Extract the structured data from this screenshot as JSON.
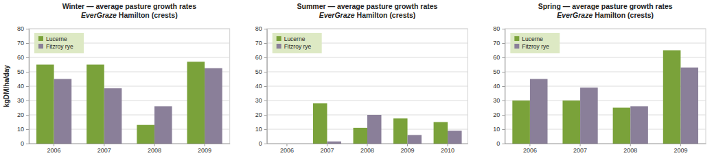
{
  "chart_data": [
    {
      "type": "bar",
      "title": [
        "Winter — average pasture growth rates",
        "EverGraze Hamilton (crests)"
      ],
      "y_label": "kgDM/ha/day",
      "categories": [
        "2006",
        "2007",
        "2008",
        "2009"
      ],
      "series": [
        {
          "name": "Lucerne",
          "color": "#7aa23a",
          "values": [
            55,
            55,
            13,
            57
          ]
        },
        {
          "name": "Fitzroy rye",
          "color": "#8a7f99",
          "values": [
            45,
            38.5,
            26,
            52.5
          ]
        }
      ],
      "ylim": [
        0,
        80
      ],
      "yticks": [
        0,
        10,
        20,
        30,
        40,
        50,
        60,
        70,
        80
      ],
      "grid": true,
      "legend": "upper left"
    },
    {
      "type": "bar",
      "title": [
        "Summer — average pasture growth rates",
        "EverGraze Hamilton (crests)"
      ],
      "categories": [
        "2006",
        "2007",
        "2008",
        "2009",
        "2010"
      ],
      "series": [
        {
          "name": "Lucerne",
          "color": "#7aa23a",
          "values": [
            null,
            28,
            11,
            17.5,
            15
          ]
        },
        {
          "name": "Fitzroy rye",
          "color": "#8a7f99",
          "values": [
            null,
            1.5,
            20,
            6,
            9
          ]
        }
      ],
      "ylim": [
        0,
        80
      ],
      "yticks": [
        0,
        10,
        20,
        30,
        40,
        50,
        60,
        70,
        80
      ],
      "grid": true,
      "legend": "upper left"
    },
    {
      "type": "bar",
      "title": [
        "Spring — average pasture growth rates",
        "EverGraze Hamilton (crests)"
      ],
      "categories": [
        "2006",
        "2007",
        "2008",
        "2009"
      ],
      "series": [
        {
          "name": "Lucerne",
          "color": "#7aa23a",
          "values": [
            30,
            30,
            25,
            65
          ]
        },
        {
          "name": "Fitzroy rye",
          "color": "#8a7f99",
          "values": [
            45,
            39,
            26,
            53
          ]
        }
      ],
      "ylim": [
        0,
        80
      ],
      "yticks": [
        0,
        10,
        20,
        30,
        40,
        50,
        60,
        70,
        80
      ],
      "grid": true,
      "legend": "upper left"
    }
  ]
}
